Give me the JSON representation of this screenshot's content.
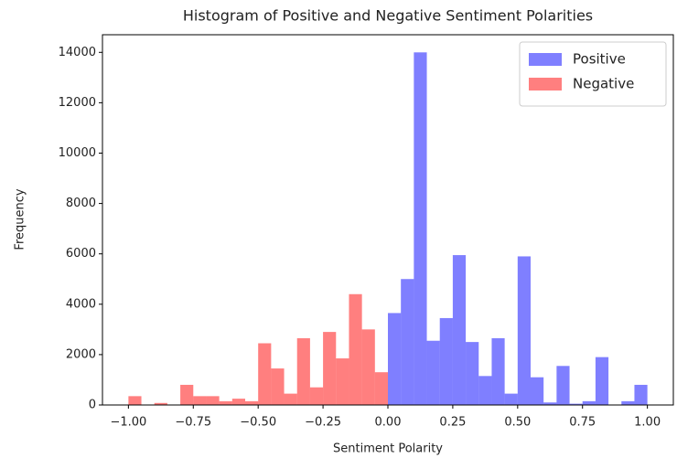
{
  "chart_data": {
    "type": "histogram",
    "title": "Histogram of Positive and Negative Sentiment Polarities",
    "xlabel": "Sentiment Polarity",
    "ylabel": "Frequency",
    "series": [
      {
        "name": "Positive",
        "color": "blue",
        "alpha": 0.5,
        "bins": [
          0,
          0.05,
          0.1,
          0.15,
          0.2,
          0.25,
          0.3,
          0.35,
          0.4,
          0.45,
          0.5,
          0.55,
          0.6,
          0.65,
          0.7,
          0.75,
          0.8,
          0.85,
          0.9,
          0.95,
          1.0
        ],
        "values": [
          3650,
          5000,
          14000,
          2550,
          3450,
          5950,
          2500,
          1150,
          2650,
          450,
          5900,
          1100,
          100,
          1550,
          50,
          150,
          1900,
          0,
          150,
          800
        ]
      },
      {
        "name": "Negative",
        "color": "red",
        "alpha": 0.5,
        "bins": [
          -1.0,
          -0.95,
          -0.9,
          -0.85,
          -0.8,
          -0.75,
          -0.7,
          -0.65,
          -0.6,
          -0.55,
          -0.5,
          -0.45,
          -0.4,
          -0.35,
          -0.3,
          -0.25,
          -0.2,
          -0.15,
          -0.1,
          -0.05,
          0
        ],
        "values": [
          350,
          0,
          80,
          0,
          800,
          350,
          350,
          150,
          250,
          150,
          2450,
          1450,
          450,
          2650,
          700,
          2900,
          1850,
          4400,
          3000,
          1300
        ]
      }
    ],
    "xlim": [
      -1.1,
      1.1
    ],
    "xticks": [
      {
        "value": -1.0,
        "label": "−1.00"
      },
      {
        "value": -0.75,
        "label": "−0.75"
      },
      {
        "value": -0.5,
        "label": "−0.50"
      },
      {
        "value": -0.25,
        "label": "−0.25"
      },
      {
        "value": 0,
        "label": "0.00"
      },
      {
        "value": 0.25,
        "label": "0.25"
      },
      {
        "value": 0.5,
        "label": "0.50"
      },
      {
        "value": 0.75,
        "label": "0.75"
      },
      {
        "value": 1.0,
        "label": "1.00"
      }
    ],
    "ylim": [
      0,
      14700
    ],
    "yticks": [
      0,
      2000,
      4000,
      6000,
      8000,
      10000,
      12000,
      14000
    ],
    "legend": "upper right"
  }
}
